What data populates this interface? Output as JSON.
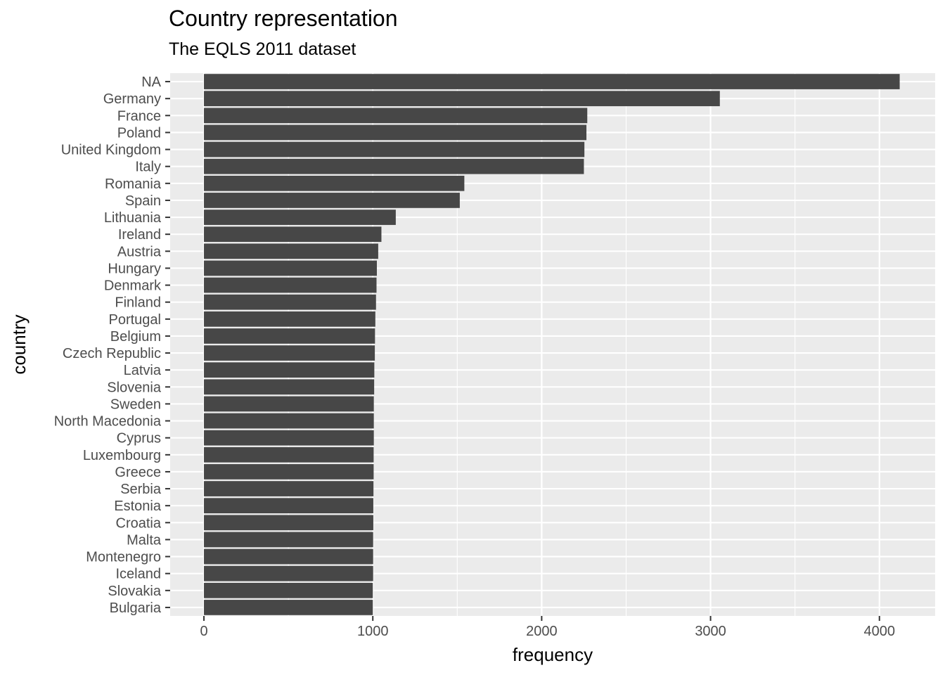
{
  "chart_data": {
    "type": "bar",
    "orientation": "horizontal",
    "title": "Country representation",
    "subtitle": "The EQLS 2011 dataset",
    "xlabel": "frequency",
    "ylabel": "country",
    "xlim": [
      -200,
      4330
    ],
    "xticks": [
      0,
      1000,
      2000,
      3000,
      4000
    ],
    "grid": true,
    "categories": [
      "NA",
      "Germany",
      "France",
      "Poland",
      "United Kingdom",
      "Italy",
      "Romania",
      "Spain",
      "Lithuania",
      "Ireland",
      "Austria",
      "Hungary",
      "Denmark",
      "Finland",
      "Portugal",
      "Belgium",
      "Czech Republic",
      "Latvia",
      "Slovenia",
      "Sweden",
      "North Macedonia",
      "Cyprus",
      "Luxembourg",
      "Greece",
      "Serbia",
      "Estonia",
      "Croatia",
      "Malta",
      "Montenegro",
      "Iceland",
      "Slovakia",
      "Bulgaria"
    ],
    "values": [
      4120,
      3055,
      2270,
      2265,
      2253,
      2250,
      1542,
      1515,
      1136,
      1051,
      1032,
      1024,
      1022,
      1019,
      1015,
      1013,
      1012,
      1009,
      1008,
      1006,
      1006,
      1006,
      1005,
      1005,
      1004,
      1003,
      1003,
      1002,
      1002,
      1002,
      1000,
      1000
    ],
    "colors": {
      "panel": "#ebebeb",
      "grid": "#ffffff",
      "bar": "#474747",
      "tick_text": "#4d4d4d",
      "tick_mark": "#333333"
    }
  }
}
